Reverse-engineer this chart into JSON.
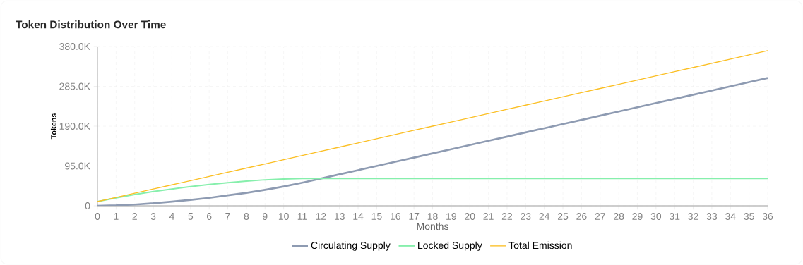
{
  "chart_data": {
    "type": "line",
    "title": "Token Distribution Over Time",
    "xlabel": "Months",
    "ylabel": "Tokens",
    "x": [
      0,
      1,
      2,
      3,
      4,
      5,
      6,
      7,
      8,
      9,
      10,
      11,
      12,
      13,
      14,
      15,
      16,
      17,
      18,
      19,
      20,
      21,
      22,
      23,
      24,
      25,
      26,
      27,
      28,
      29,
      30,
      31,
      32,
      33,
      34,
      35,
      36
    ],
    "series": [
      {
        "name": "Circulating Supply",
        "color": "#8e9bb2",
        "values": [
          0,
          1,
          3,
          6,
          10,
          14,
          19,
          25,
          31,
          38,
          46,
          55,
          65,
          75,
          85,
          95,
          105,
          115,
          125,
          135,
          145,
          155,
          165,
          175,
          185,
          195,
          205,
          215,
          225,
          235,
          245,
          255,
          265,
          275,
          285,
          295,
          305
        ]
      },
      {
        "name": "Locked Supply",
        "color": "#86efac",
        "values": [
          10,
          19,
          27,
          34,
          40,
          46,
          51,
          55,
          59,
          62,
          64,
          65,
          65,
          65,
          65,
          65,
          65,
          65,
          65,
          65,
          65,
          65,
          65,
          65,
          65,
          65,
          65,
          65,
          65,
          65,
          65,
          65,
          65,
          65,
          65,
          65,
          65
        ]
      },
      {
        "name": "Total Emission",
        "color": "#fbbf24",
        "values": [
          10,
          20,
          30,
          40,
          50,
          60,
          70,
          80,
          90,
          100,
          110,
          120,
          130,
          140,
          150,
          160,
          170,
          180,
          190,
          200,
          210,
          220,
          230,
          240,
          250,
          260,
          270,
          280,
          290,
          300,
          310,
          320,
          330,
          340,
          350,
          360,
          370
        ]
      }
    ],
    "xlim": [
      0,
      36
    ],
    "xticks": [
      0,
      1,
      2,
      3,
      4,
      5,
      6,
      7,
      8,
      9,
      10,
      11,
      12,
      13,
      14,
      15,
      16,
      17,
      18,
      19,
      20,
      21,
      22,
      23,
      24,
      25,
      26,
      27,
      28,
      29,
      30,
      31,
      32,
      33,
      34,
      35,
      36
    ],
    "ylim": [
      0,
      380
    ],
    "yticks": [
      0,
      {
        "value": 95,
        "label": "95.0K"
      },
      {
        "value": 190,
        "label": "190.0K"
      },
      {
        "value": 285,
        "label": "285.0K"
      },
      {
        "value": 380,
        "label": "380.0K"
      }
    ],
    "grid": true,
    "legend": "bottom",
    "marker": "none",
    "line_style": "solid"
  }
}
